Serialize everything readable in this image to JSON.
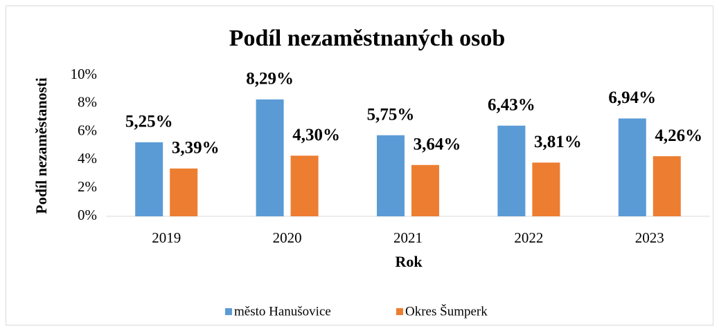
{
  "chart_data": {
    "type": "bar",
    "title": "Podíl nezaměstnaných osob",
    "x_label": "Rok",
    "y_label": "Podíl nezaměstanosti",
    "categories": [
      "2019",
      "2020",
      "2021",
      "2022",
      "2023"
    ],
    "series": [
      {
        "name": "město Hanušovice",
        "color": "#5b9bd5",
        "values": [
          5.25,
          8.29,
          5.75,
          6.43,
          6.94
        ],
        "value_labels": [
          "5,25%",
          "8,29%",
          "5,75%",
          "6,43%",
          "6,94%"
        ]
      },
      {
        "name": "Okres Šumperk",
        "color": "#ed7d31",
        "values": [
          3.39,
          4.3,
          3.64,
          3.81,
          4.26
        ],
        "value_labels": [
          "3,39%",
          "4,30%",
          "3,64%",
          "3,81%",
          "4,26%"
        ]
      }
    ],
    "ylim": [
      0,
      10
    ],
    "yticks": [
      {
        "value": 0,
        "label": "0%"
      },
      {
        "value": 2,
        "label": "2%"
      },
      {
        "value": 4,
        "label": "4%"
      },
      {
        "value": 6,
        "label": "6%"
      },
      {
        "value": 8,
        "label": "8%"
      },
      {
        "value": 10,
        "label": "10%"
      }
    ],
    "grid": false,
    "legend": "bottom"
  }
}
